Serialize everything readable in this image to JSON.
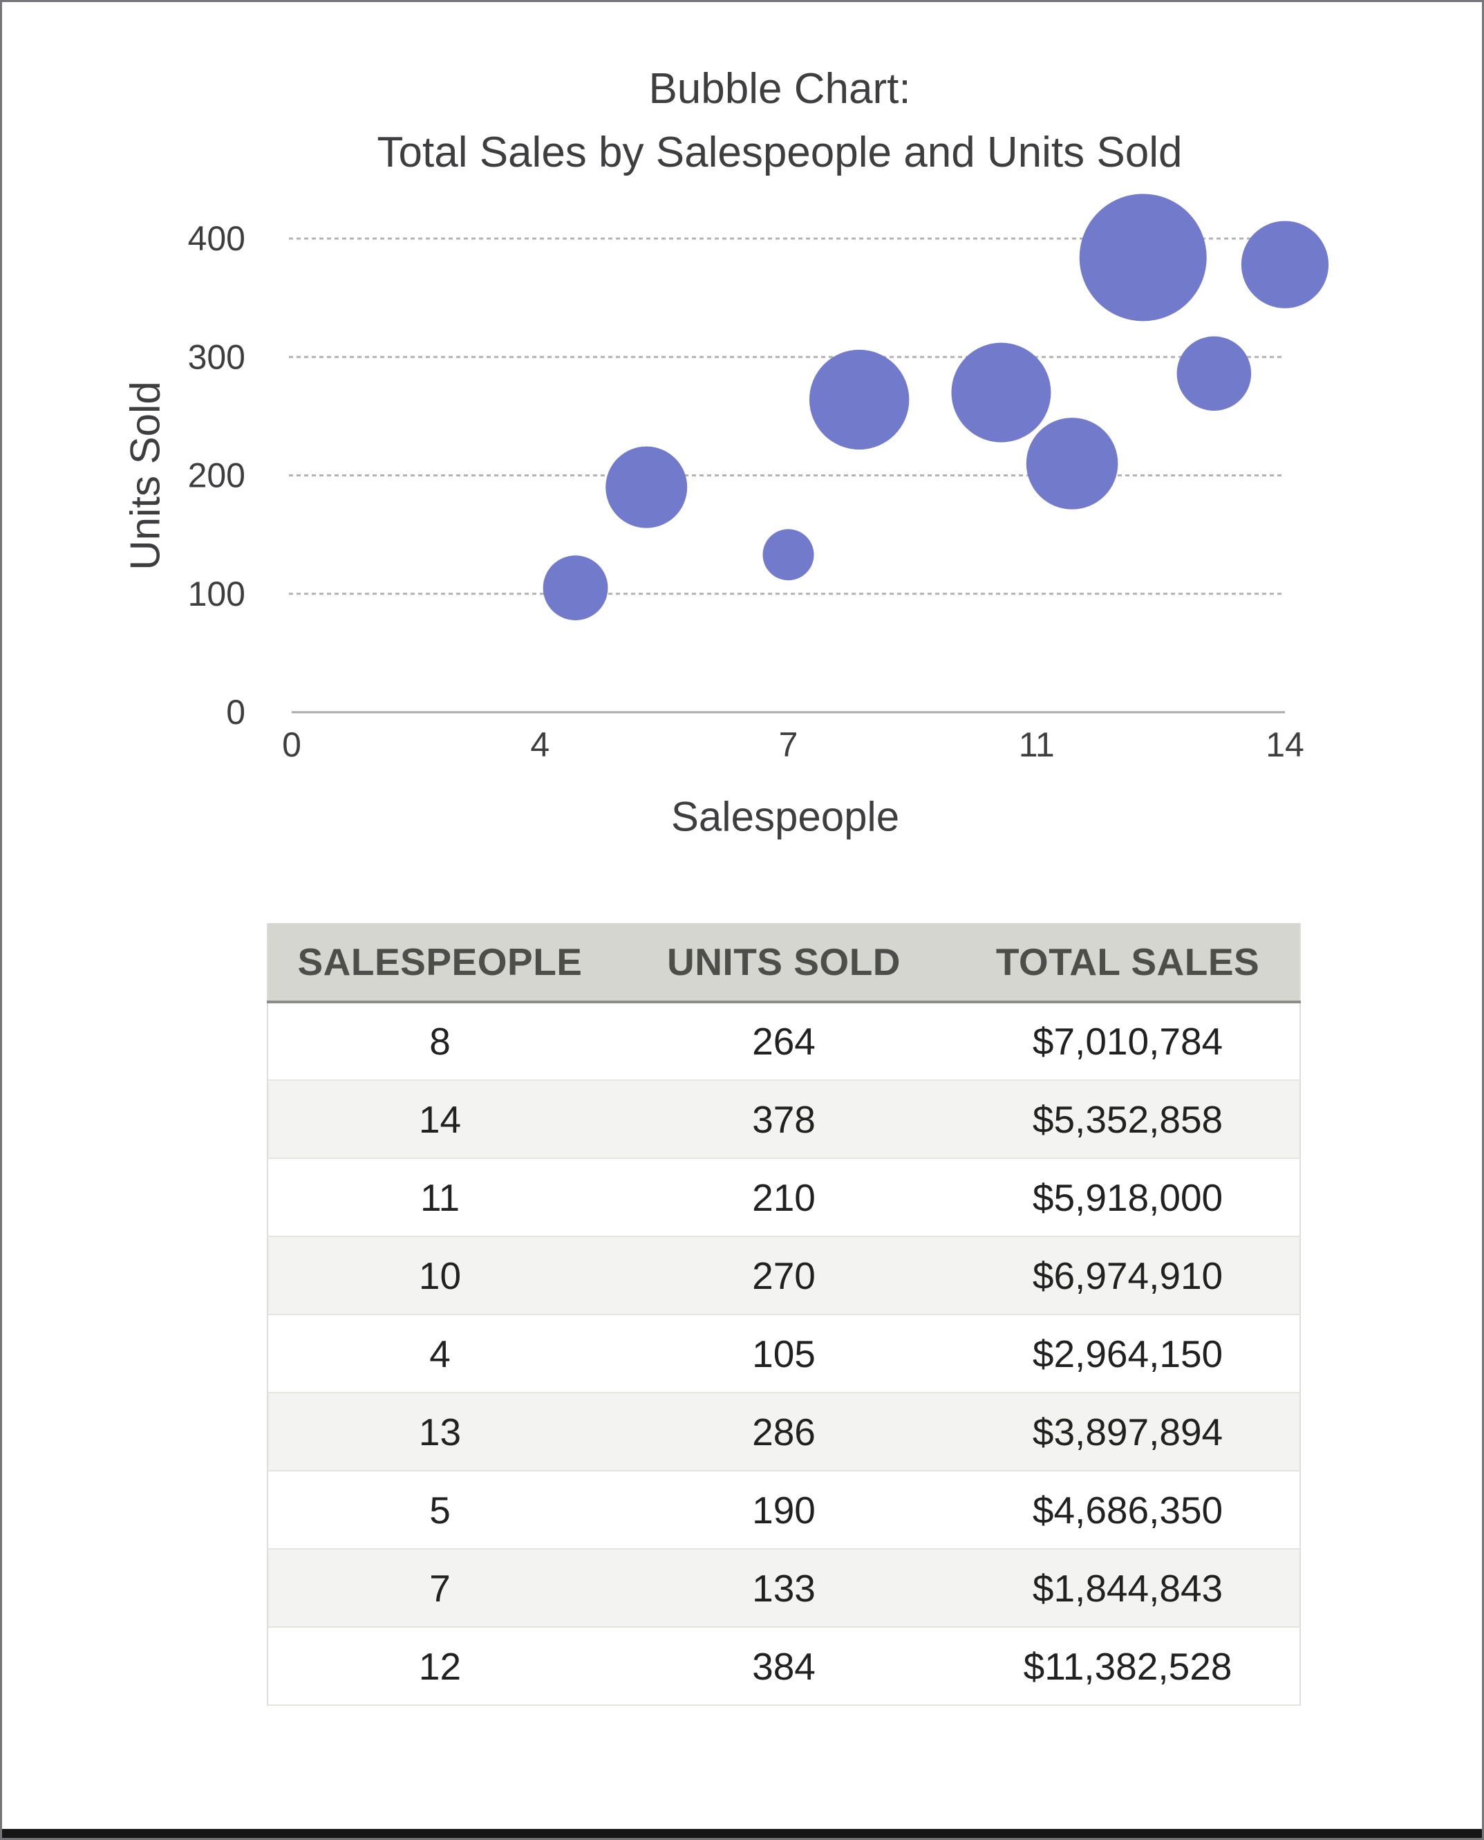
{
  "window": {
    "background": "#ffffff",
    "border_color": "#76767a",
    "bottom_bar_color": "#161616"
  },
  "chart": {
    "title_line1": "Bubble Chart:",
    "title_line2": "Total Sales by Salespeople and Units Sold",
    "ylabel": "Units Sold",
    "xlabel": "Salespeople"
  },
  "chart_data": {
    "type": "scatter",
    "subtype": "bubble",
    "title": "Bubble Chart: Total Sales by Salespeople and Units Sold",
    "xlabel": "Salespeople",
    "ylabel": "Units Sold",
    "xlim": [
      0,
      14
    ],
    "ylim": [
      0,
      400
    ],
    "x_ticks": [
      {
        "value": 0,
        "label": "0"
      },
      {
        "value": 3.5,
        "label": "4"
      },
      {
        "value": 7,
        "label": "7"
      },
      {
        "value": 10.5,
        "label": "11"
      },
      {
        "value": 14,
        "label": "14"
      }
    ],
    "y_ticks": [
      {
        "value": 0,
        "label": "0"
      },
      {
        "value": 100,
        "label": "100"
      },
      {
        "value": 200,
        "label": "200"
      },
      {
        "value": 300,
        "label": "300"
      },
      {
        "value": 400,
        "label": "400"
      }
    ],
    "grid": "horizontal-dotted",
    "legend": "none",
    "bubble_color": "#717ACB",
    "size_field": "total_sales",
    "points": [
      {
        "salespeople": 8,
        "units_sold": 264,
        "total_sales": 7010784
      },
      {
        "salespeople": 14,
        "units_sold": 378,
        "total_sales": 5352858
      },
      {
        "salespeople": 11,
        "units_sold": 210,
        "total_sales": 5918000
      },
      {
        "salespeople": 10,
        "units_sold": 270,
        "total_sales": 6974910
      },
      {
        "salespeople": 4,
        "units_sold": 105,
        "total_sales": 2964150
      },
      {
        "salespeople": 13,
        "units_sold": 286,
        "total_sales": 3897894
      },
      {
        "salespeople": 5,
        "units_sold": 190,
        "total_sales": 4686350
      },
      {
        "salespeople": 7,
        "units_sold": 133,
        "total_sales": 1844843
      },
      {
        "salespeople": 12,
        "units_sold": 384,
        "total_sales": 11382528
      }
    ]
  },
  "table": {
    "headers": [
      "SALESPEOPLE",
      "UNITS SOLD",
      "TOTAL SALES"
    ],
    "rows": [
      [
        "8",
        "264",
        "$7,010,784"
      ],
      [
        "14",
        "378",
        "$5,352,858"
      ],
      [
        "11",
        "210",
        "$5,918,000"
      ],
      [
        "10",
        "270",
        "$6,974,910"
      ],
      [
        "4",
        "105",
        "$2,964,150"
      ],
      [
        "13",
        "286",
        "$3,897,894"
      ],
      [
        "5",
        "190",
        "$4,686,350"
      ],
      [
        "7",
        "133",
        "$1,844,843"
      ],
      [
        "12",
        "384",
        "$11,382,528"
      ]
    ]
  },
  "colors": {
    "bubble": "#717ACB",
    "grid": "#b3b3b3",
    "axis": "#a8a8a8",
    "chart_text": "#3e3e40",
    "cell_text": "#212121",
    "header_text": "#4d4d49",
    "header_bg": "#d6d6d0",
    "row_alt": "#f3f3f1"
  }
}
